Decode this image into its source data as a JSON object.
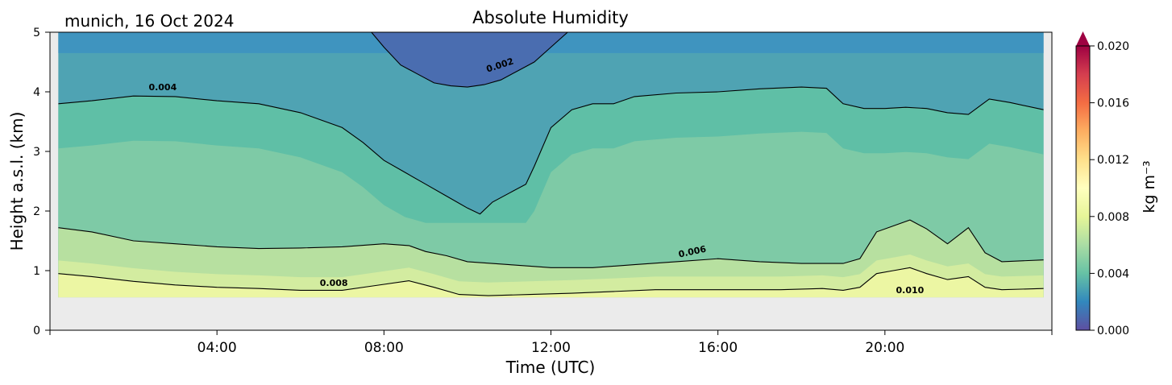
{
  "figure": {
    "location_date": "munich, 16 Oct 2024"
  },
  "chart_data": {
    "type": "heatmap",
    "title": "Absolute Humidity",
    "xlabel": "Time (UTC)",
    "ylabel": "Height a.s.l. (km)",
    "xlim_hours": [
      0,
      24
    ],
    "ylim_km": [
      0,
      5
    ],
    "x_ticks": [
      {
        "hour": 4,
        "label": "04:00"
      },
      {
        "hour": 8,
        "label": "08:00"
      },
      {
        "hour": 12,
        "label": "12:00"
      },
      {
        "hour": 16,
        "label": "16:00"
      },
      {
        "hour": 20,
        "label": "20:00"
      }
    ],
    "y_ticks": [
      {
        "value": 0,
        "label": "0"
      },
      {
        "value": 1,
        "label": "1"
      },
      {
        "value": 2,
        "label": "2"
      },
      {
        "value": 3,
        "label": "3"
      },
      {
        "value": 4,
        "label": "4"
      },
      {
        "value": 5,
        "label": "5"
      }
    ],
    "colorbar": {
      "label": "kg m⁻³",
      "range": [
        0,
        0.02
      ],
      "ticks": [
        "0.000",
        "0.004",
        "0.008",
        "0.012",
        "0.016",
        "0.020"
      ],
      "extend": "max",
      "colormap": "Spectral_r",
      "levels": 20
    },
    "no_data_below_km": 0.55,
    "contours": [
      {
        "level": 0.002,
        "label": "0.002",
        "x": [
          7.7,
          8.0,
          8.4,
          8.8,
          9.2,
          9.6,
          10.0,
          10.4,
          10.8,
          11.2,
          11.6,
          12.0,
          12.4
        ],
        "y": [
          5.0,
          4.75,
          4.45,
          4.3,
          4.15,
          4.1,
          4.08,
          4.12,
          4.2,
          4.35,
          4.5,
          4.75,
          5.0
        ]
      },
      {
        "level": 0.004,
        "label": "0.004",
        "x": [
          0.2,
          1.0,
          2.0,
          3.0,
          4.0,
          5.0,
          6.0,
          7.0,
          7.5,
          8.0,
          8.5,
          9.0,
          9.5,
          10.0,
          10.3,
          10.6,
          11.0,
          11.4,
          11.6,
          12.0,
          12.5,
          13.0,
          13.5,
          14.0,
          15.0,
          16.0,
          17.0,
          18.0,
          18.6,
          19.0,
          19.5,
          20.0,
          20.5,
          21.0,
          21.5,
          22.0,
          22.5,
          23.0,
          23.8
        ],
        "y": [
          3.8,
          3.85,
          3.93,
          3.92,
          3.85,
          3.8,
          3.65,
          3.4,
          3.15,
          2.85,
          2.65,
          2.45,
          2.25,
          2.05,
          1.95,
          2.15,
          2.3,
          2.45,
          2.75,
          3.4,
          3.7,
          3.8,
          3.8,
          3.92,
          3.98,
          4.0,
          4.05,
          4.08,
          4.06,
          3.8,
          3.72,
          3.72,
          3.74,
          3.72,
          3.65,
          3.62,
          3.88,
          3.82,
          3.7
        ]
      },
      {
        "level": 0.006,
        "label": "0.006",
        "x": [
          0.2,
          1.0,
          2.0,
          3.0,
          4.0,
          5.0,
          6.0,
          7.0,
          8.0,
          8.6,
          9.0,
          9.5,
          10.0,
          11.0,
          12.0,
          13.0,
          14.0,
          15.0,
          16.0,
          17.0,
          18.0,
          19.0,
          19.4,
          19.8,
          20.2,
          20.6,
          21.0,
          21.5,
          22.0,
          22.4,
          22.8,
          23.8
        ],
        "y": [
          1.72,
          1.65,
          1.5,
          1.45,
          1.4,
          1.37,
          1.38,
          1.4,
          1.45,
          1.42,
          1.32,
          1.25,
          1.15,
          1.1,
          1.05,
          1.05,
          1.1,
          1.15,
          1.2,
          1.15,
          1.12,
          1.12,
          1.2,
          1.65,
          1.75,
          1.85,
          1.7,
          1.45,
          1.72,
          1.3,
          1.15,
          1.18
        ]
      },
      {
        "level": 0.008,
        "label": "0.008",
        "x": [
          0.2,
          1.0,
          2.0,
          3.0,
          4.0,
          5.0,
          6.0,
          7.0,
          7.8,
          8.6,
          9.2,
          9.8,
          10.5,
          11.5,
          12.5,
          13.5,
          14.5,
          15.5,
          16.5,
          17.5,
          18.5,
          19.0,
          19.4,
          19.8,
          20.2,
          20.6,
          21.0,
          21.5,
          22.0,
          22.4,
          22.8,
          23.8
        ],
        "y": [
          0.95,
          0.9,
          0.82,
          0.76,
          0.72,
          0.7,
          0.67,
          0.67,
          0.75,
          0.83,
          0.72,
          0.6,
          0.58,
          0.6,
          0.62,
          0.65,
          0.68,
          0.68,
          0.68,
          0.68,
          0.7,
          0.67,
          0.72,
          0.95,
          1.0,
          1.05,
          0.95,
          0.85,
          0.9,
          0.72,
          0.68,
          0.7
        ]
      }
    ]
  }
}
